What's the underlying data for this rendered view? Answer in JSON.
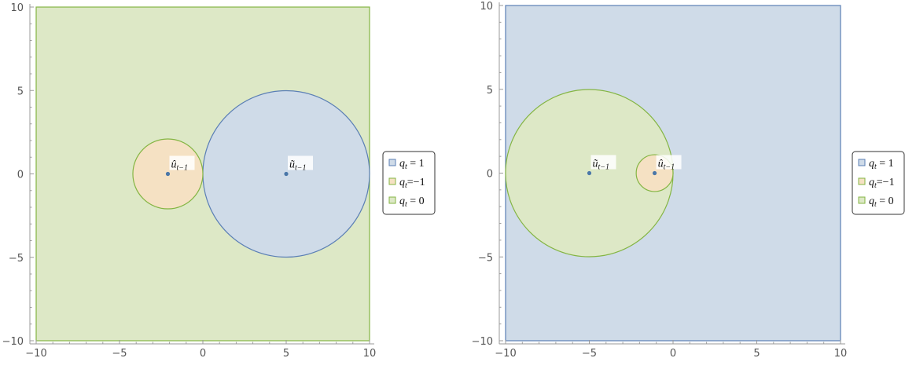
{
  "chart_data": [
    {
      "type": "region",
      "xlim": [
        -10,
        10
      ],
      "ylim": [
        -10,
        10
      ],
      "x_ticks": [
        -10,
        -5,
        0,
        5,
        10
      ],
      "y_ticks": [
        -10,
        -5,
        0,
        5,
        10
      ],
      "x_tick_labels": [
        "−10",
        "−5",
        "0",
        "5",
        "10"
      ],
      "y_tick_labels": [
        "−10",
        "−5",
        "0",
        "5",
        "10"
      ],
      "background_region": "q0",
      "regions": [
        {
          "series": "q1",
          "shape": "disk",
          "center": [
            5,
            0
          ],
          "radius": 5
        },
        {
          "series": "qm1",
          "shape": "disk",
          "center": [
            -2.1,
            0
          ],
          "radius": 2.1
        }
      ],
      "points": [
        {
          "x": -2.1,
          "y": 0,
          "base": "û",
          "sub": "t−1"
        },
        {
          "x": 5,
          "y": 0,
          "base": "ũ",
          "sub": "t−1"
        }
      ]
    },
    {
      "type": "region",
      "xlim": [
        -10,
        10
      ],
      "ylim": [
        -10,
        10
      ],
      "x_ticks": [
        -10,
        -5,
        0,
        5,
        10
      ],
      "y_ticks": [
        -10,
        -5,
        0,
        5,
        10
      ],
      "x_tick_labels": [
        "−10",
        "−5",
        "0",
        "5",
        "10"
      ],
      "y_tick_labels": [
        "−10",
        "−5",
        "0",
        "5",
        "10"
      ],
      "background_region": "q1",
      "regions": [
        {
          "series": "q0",
          "shape": "disk",
          "center": [
            -5,
            0
          ],
          "radius": 5
        },
        {
          "series": "qm1",
          "shape": "disk",
          "center": [
            -1.1,
            0
          ],
          "radius": 1.1
        }
      ],
      "points": [
        {
          "x": -5,
          "y": 0,
          "base": "ũ",
          "sub": "t−1"
        },
        {
          "x": -1.1,
          "y": 0,
          "base": "û",
          "sub": "t−1"
        }
      ]
    }
  ],
  "legend": {
    "placement": "right",
    "entries": [
      {
        "key": "q1",
        "base": "q",
        "sub": "t",
        "rest": " = 1"
      },
      {
        "key": "qm1",
        "base": "q",
        "sub": "t",
        "rest": "=−1"
      },
      {
        "key": "q0",
        "base": "q",
        "sub": "t",
        "rest": " = 0"
      }
    ]
  },
  "colors": {
    "q1": {
      "fill": "#cfdbe8",
      "stroke": "#5b7fb5"
    },
    "qm1": {
      "fill": "#f5e1c3",
      "stroke": "#84b543"
    },
    "q0": {
      "fill": "#dde8c6",
      "stroke": "#84b543"
    },
    "point": "#4a77a8",
    "axis": "#9a9a9a"
  }
}
